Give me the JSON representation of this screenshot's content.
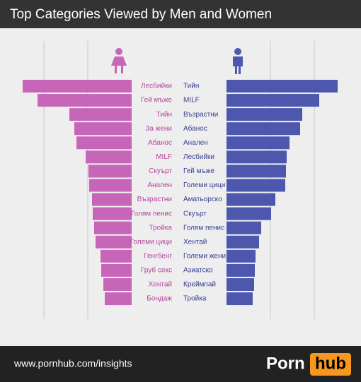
{
  "chart_data": {
    "type": "butterfly",
    "title": "Top Categories Viewed by Men and Women",
    "xlim": [
      0,
      170
    ],
    "xticks": [
      62,
      124
    ],
    "grid": true,
    "series": [
      {
        "color": "#c766b8",
        "label_color": "#b2459c",
        "side": "left",
        "categories": [
          "Лесбийки",
          "Гей мъже",
          "Тийн",
          "За жени",
          "Абанос",
          "MILF",
          "Скуърт",
          "Анален",
          "Възрастни",
          "Голям пенис",
          "Тройка",
          "Големи цици",
          "Генгбенг",
          "Груб секс",
          "Хентай",
          "Бондаж"
        ],
        "values": [
          154,
          133,
          88,
          81,
          78,
          65,
          61,
          60,
          56,
          55,
          53,
          51,
          44,
          43,
          40,
          38
        ]
      },
      {
        "color": "#4c57ad",
        "label_color": "#353f91",
        "side": "right",
        "categories": [
          "Тийн",
          "MILF",
          "Възрастни",
          "Абанос",
          "Анален",
          "Лесбийки",
          "Гей мъже",
          "Големи цици",
          "Аматьорско",
          "Скуърт",
          "Голям пенис",
          "Хентай",
          "Големи жени",
          "Азиатско",
          "Креймпай",
          "Тройка"
        ],
        "values": [
          157,
          131,
          107,
          104,
          89,
          85,
          84,
          83,
          69,
          63,
          49,
          46,
          41,
          40,
          39,
          37
        ]
      }
    ]
  },
  "footer": {
    "url": "www.pornhub.com/insights",
    "logo_left": "Porn",
    "logo_right": "hub"
  }
}
